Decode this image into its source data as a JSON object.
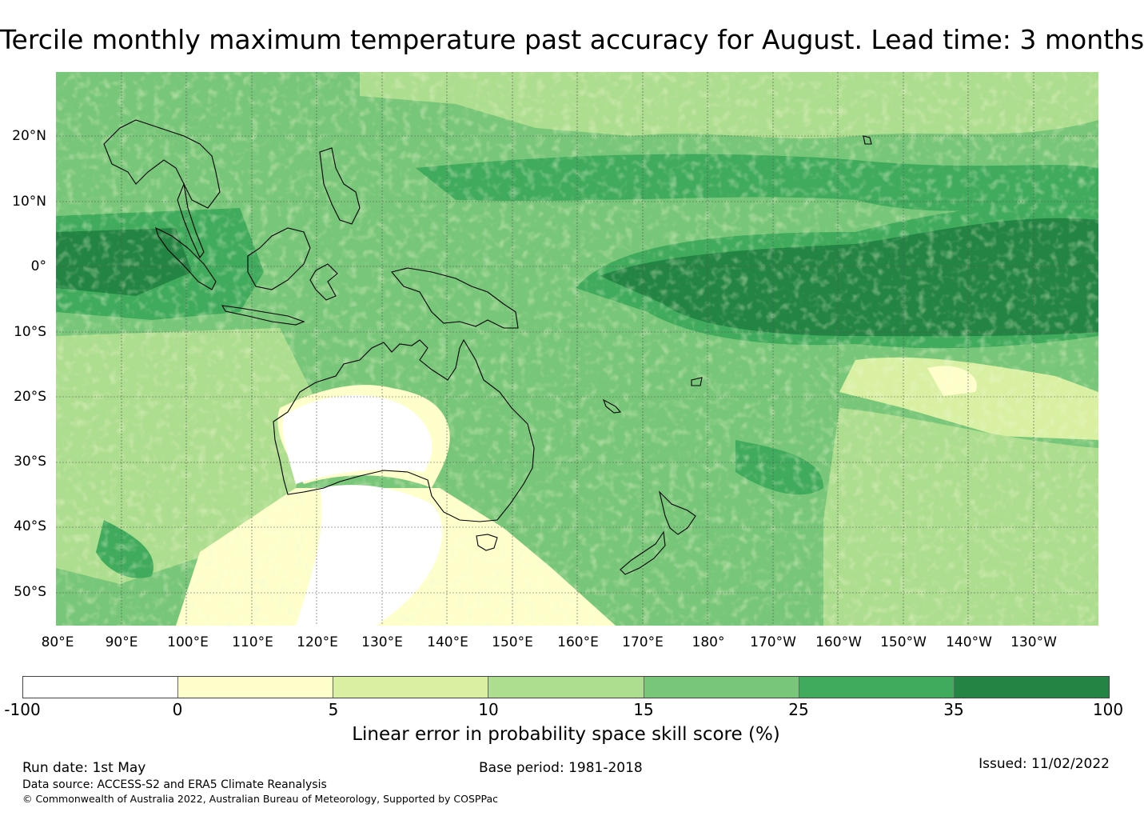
{
  "title": "Tercile monthly maximum temperature past accuracy for August. Lead time: 3 months",
  "map": {
    "lat_labels": [
      "20°N",
      "10°N",
      "0°",
      "10°S",
      "20°S",
      "30°S",
      "40°S",
      "50°S"
    ],
    "lon_labels": [
      "80°E",
      "90°E",
      "100°E",
      "110°E",
      "120°E",
      "130°E",
      "140°E",
      "150°E",
      "160°E",
      "170°E",
      "180°",
      "170°W",
      "160°W",
      "150°W",
      "140°W",
      "130°W"
    ],
    "regions": [
      "Australia",
      "New Guinea",
      "Borneo",
      "Sumatra",
      "Java",
      "Sulawesi",
      "Philippines",
      "Indochina",
      "New Zealand",
      "Tasmania",
      "Hawaii",
      "New Caledonia"
    ]
  },
  "legend": {
    "boundaries": [
      "-100",
      "0",
      "5",
      "10",
      "15",
      "25",
      "35",
      "100"
    ],
    "colors": [
      "#ffffff",
      "#ffffcc",
      "#d9f0a3",
      "#addd8e",
      "#78c679",
      "#41ab5d",
      "#238443"
    ],
    "label": "Linear error in probability space skill score (%)"
  },
  "footer": {
    "run_date": "Run date: 1st May",
    "base_period": "Base period: 1981-2018",
    "issued": "Issued: 11/02/2022",
    "data_source": "Data source: ACCESS-S2 and ERA5 Climate Reanalysis",
    "copyright": "© Commonwealth of Australia 2022, Australian Bureau of Meteorology, Supported by COSPPac"
  }
}
